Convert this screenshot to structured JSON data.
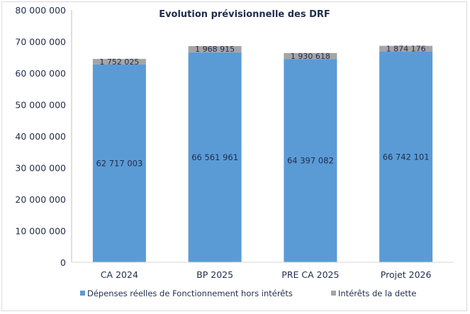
{
  "chart_data": {
    "type": "bar",
    "stacked": true,
    "title": "Evolution prévisionnelle des DRF",
    "xlabel": "",
    "ylabel": "",
    "ylim": [
      0,
      80000000
    ],
    "yticks": [
      0,
      10000000,
      20000000,
      30000000,
      40000000,
      50000000,
      60000000,
      70000000,
      80000000
    ],
    "ytick_labels": [
      "0",
      "10 000 000",
      "20 000 000",
      "30 000 000",
      "40 000 000",
      "50 000 000",
      "60 000 000",
      "70 000 000",
      "80 000 000"
    ],
    "categories": [
      "CA 2024",
      "BP 2025",
      "PRE CA 2025",
      "Projet 2026"
    ],
    "series": [
      {
        "name": "Dépenses réelles de Fonctionnement hors intérêts",
        "color": "#5b9bd5",
        "values": [
          62717003,
          66561961,
          64397082,
          66742101
        ],
        "labels": [
          "62 717 003",
          "66 561 961",
          "64 397 082",
          "66 742 101"
        ]
      },
      {
        "name": "Intérêts de la dette",
        "color": "#a5a5a5",
        "values": [
          1752025,
          1968915,
          1930618,
          1874176
        ],
        "labels": [
          "1 752 025",
          "1 968 915",
          "1 930 618",
          "1 874 176"
        ]
      }
    ],
    "legend": "bottom",
    "grid": false
  }
}
